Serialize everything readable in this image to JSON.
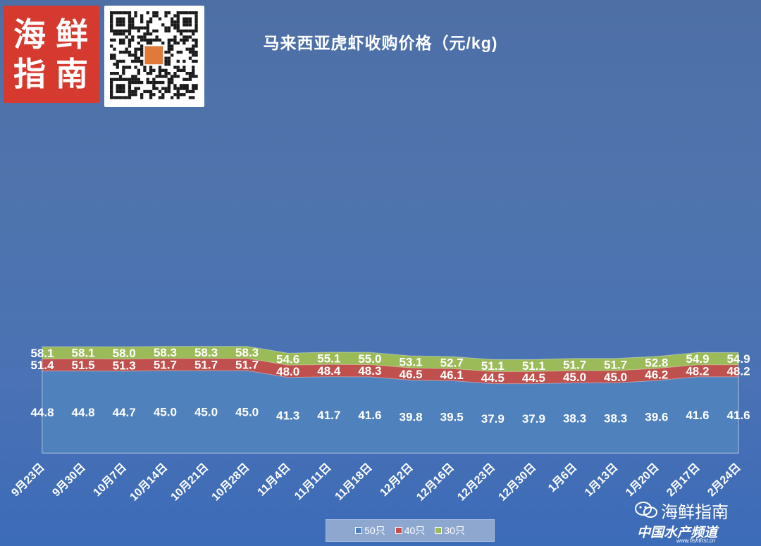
{
  "logo": {
    "glyphs": [
      "海",
      "鲜",
      "指",
      "南"
    ]
  },
  "chart_data": {
    "type": "area",
    "stacked": true,
    "title": "马来西亚虎虾收购价格（元/kg)",
    "categories": [
      "9月23日",
      "9月30日",
      "10月7日",
      "10月14日",
      "10月21日",
      "10月28日",
      "11月4日",
      "11月11日",
      "11月18日",
      "12月2日",
      "12月16日",
      "12月23日",
      "12月30日",
      "1月6日",
      "1月13日",
      "1月20日",
      "2月17日",
      "2月24日"
    ],
    "series": [
      {
        "name": "50只",
        "color": "#4f81bd",
        "values": [
          44.8,
          44.8,
          44.7,
          45.0,
          45.0,
          45.0,
          41.3,
          41.7,
          41.6,
          39.8,
          39.5,
          37.9,
          37.9,
          38.3,
          38.3,
          39.6,
          41.6,
          41.6
        ]
      },
      {
        "name": "40只",
        "color": "#c0504d",
        "values": [
          51.4,
          51.5,
          51.3,
          51.7,
          51.7,
          51.7,
          48.0,
          48.4,
          48.3,
          46.5,
          46.1,
          44.5,
          44.5,
          45.0,
          45.0,
          46.2,
          48.2,
          48.2
        ]
      },
      {
        "name": "30只",
        "color": "#9bbb59",
        "values": [
          58.1,
          58.1,
          58.0,
          58.3,
          58.3,
          58.3,
          54.6,
          55.1,
          55.0,
          53.1,
          52.7,
          51.1,
          51.1,
          51.7,
          51.7,
          52.8,
          54.9,
          54.9
        ]
      }
    ],
    "legend_position": "bottom",
    "grid": false
  },
  "watermark": {
    "name": "海鲜指南",
    "sub": "中国水产频道",
    "url": "www.fishfirst.cn"
  },
  "colors": {
    "qr_center": "#e07a3a"
  }
}
